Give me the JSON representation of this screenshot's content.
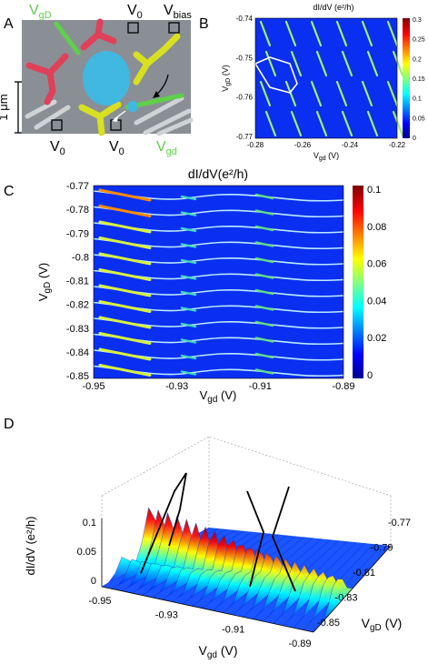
{
  "panel_a": {
    "letter": "A",
    "labels": {
      "vgD": "V",
      "vgD_sub": "gD",
      "v0_top": "V",
      "v0_top_sub": "0",
      "vbias": "V",
      "vbias_sub": "bias",
      "v0_left": "V",
      "v0_left_sub": "0",
      "v0_mid": "V",
      "v0_mid_sub": "0",
      "vgd": "V",
      "vgd_sub": "gd",
      "scale": "1 μm"
    },
    "colors": {
      "gate_D": "#e0405a",
      "gate_d": "#d8e020",
      "gate_green": "#4ec040",
      "dot": "#40b8e0",
      "background": "#8a8f95"
    }
  },
  "panel_b": {
    "letter": "B",
    "colorbar_title": "dI/dV (e²/h)",
    "ylabel": "V",
    "ylabel_sub": "gD",
    "ylabel_unit": " (V)",
    "xlabel": "V",
    "xlabel_sub": "gd",
    "xlabel_unit": " (V)",
    "xticks": [
      "-0.28",
      "-0.26",
      "-0.24",
      "-0.22"
    ],
    "yticks": [
      "-0.74",
      "-0.75",
      "-0.76",
      "-0.77"
    ],
    "cbar_ticks": [
      "0.3",
      "0.25",
      "0.2",
      "0.15",
      "0.1",
      "0.05",
      "0"
    ]
  },
  "panel_c": {
    "letter": "C",
    "title": "dI/dV(e²/h)",
    "ylabel": "V",
    "ylabel_sub": "gD",
    "ylabel_unit": " (V)",
    "xlabel": "V",
    "xlabel_sub": "gd",
    "xlabel_unit": " (V)",
    "xticks": [
      "-0.95",
      "-0.93",
      "-0.91",
      "-0.89"
    ],
    "yticks": [
      "-0.77",
      "-0.78",
      "-0.79",
      "-0.8",
      "-0.81",
      "-0.82",
      "-0.83",
      "-0.84",
      "-0.85"
    ],
    "cbar_ticks": [
      "0.1",
      "0.08",
      "0.06",
      "0.04",
      "0.02",
      "0"
    ]
  },
  "panel_d": {
    "letter": "D",
    "zlabel": "dI/dV (e²/h)",
    "zticks": [
      "0.1",
      "0.05",
      "0"
    ],
    "xlabel": "V",
    "xlabel_sub": "gd",
    "xlabel_unit": " (V)",
    "xticks": [
      "-0.95",
      "-0.93",
      "-0.91",
      "-0.89"
    ],
    "ylabel": "V",
    "ylabel_sub": "gD",
    "ylabel_unit": " (V)",
    "yticks": [
      "-0.77",
      "-0.79",
      "-0.81",
      "-0.83",
      "-0.85"
    ]
  },
  "chart_data": [
    {
      "type": "heatmap",
      "panel": "B",
      "xlabel": "Vgd (V)",
      "ylabel": "VgD (V)",
      "xlim": [
        -0.28,
        -0.22
      ],
      "ylim": [
        -0.77,
        -0.74
      ],
      "colorbar_label": "dI/dV (e²/h)",
      "colorbar_range": [
        0,
        0.3
      ],
      "colormap": "jet",
      "annotation": "white hexagon outlining honeycomb cell"
    },
    {
      "type": "heatmap",
      "panel": "C",
      "title": "dI/dV(e²/h)",
      "xlabel": "Vgd (V)",
      "ylabel": "VgD (V)",
      "xlim": [
        -0.95,
        -0.89
      ],
      "ylim": [
        -0.85,
        -0.77
      ],
      "colorbar_range": [
        0,
        0.11
      ],
      "colormap": "jet"
    },
    {
      "type": "area",
      "panel": "D",
      "xlabel": "Vgd (V)",
      "ylabel": "VgD (V)",
      "zlabel": "dI/dV (e²/h)",
      "xlim": [
        -0.95,
        -0.89
      ],
      "ylim": [
        -0.85,
        -0.77
      ],
      "zlim": [
        0,
        0.12
      ],
      "colormap": "jet"
    }
  ]
}
